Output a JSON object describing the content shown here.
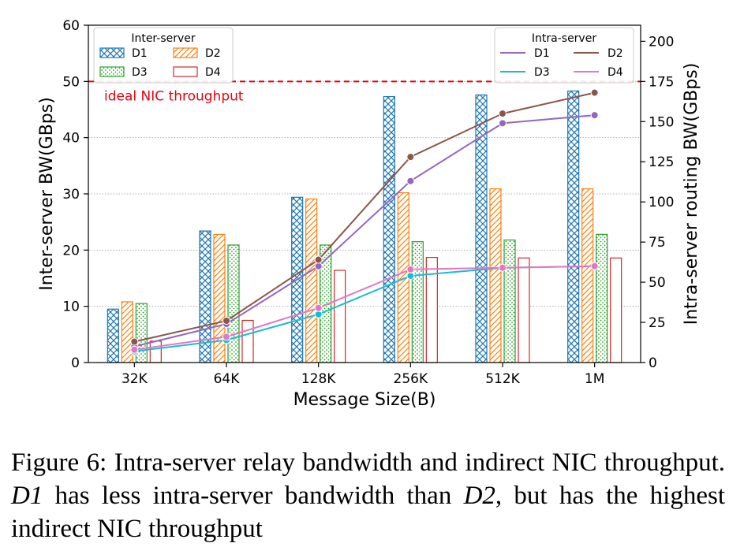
{
  "chart_data": {
    "type": "bar+line",
    "categories": [
      "32K",
      "64K",
      "128K",
      "256K",
      "512K",
      "1M"
    ],
    "xlabel": "Message Size(B)",
    "ylabel_left": "Inter-server BW(GBps)",
    "ylabel_right": "Intra-server routing BW(GBps)",
    "ylim_left": [
      0,
      60
    ],
    "yticks_left": [
      0,
      10,
      20,
      30,
      40,
      50,
      60
    ],
    "ylim_right": [
      0,
      210
    ],
    "yticks_right": [
      0,
      25,
      50,
      75,
      100,
      125,
      150,
      175,
      200
    ],
    "grid": "horizontal dotted",
    "reference_line": {
      "value": 50,
      "axis": "left",
      "label": "ideal NIC throughput",
      "color": "#e8000b"
    },
    "bar_legend": {
      "title": "Inter-server",
      "placement": "top-left"
    },
    "line_legend": {
      "title": "Intra-server",
      "placement": "top-right"
    },
    "bar_series": [
      {
        "name": "D1",
        "color": "#1f77b4",
        "hatch": "crosshatch",
        "values": [
          9.5,
          23.4,
          29.4,
          47.3,
          47.6,
          48.3
        ]
      },
      {
        "name": "D2",
        "color": "#ff7f0e",
        "hatch": "diagonal",
        "values": [
          10.8,
          22.8,
          29.1,
          30.2,
          30.9,
          30.9
        ]
      },
      {
        "name": "D3",
        "color": "#2ca02c",
        "hatch": "dots",
        "values": [
          10.5,
          20.9,
          20.9,
          21.5,
          21.8,
          22.8
        ]
      },
      {
        "name": "D4",
        "color": "#d62728",
        "hatch": "none",
        "values": [
          3.8,
          7.5,
          16.4,
          18.7,
          18.6,
          18.6
        ]
      }
    ],
    "line_series": [
      {
        "name": "D1",
        "color": "#9467bd",
        "values": [
          10,
          24,
          60,
          113,
          149,
          154
        ]
      },
      {
        "name": "D2",
        "color": "#8c564b",
        "values": [
          13,
          26,
          64,
          128,
          155,
          168
        ]
      },
      {
        "name": "D3",
        "color": "#17becf",
        "values": [
          7,
          14,
          30,
          54,
          59,
          60
        ]
      },
      {
        "name": "D4",
        "color": "#e377c2",
        "values": [
          8,
          16,
          34,
          58,
          59,
          60
        ]
      }
    ]
  },
  "caption": {
    "label": "Figure 6:",
    "text1": " Intra-server relay bandwidth and indirect NIC throughput. ",
    "em1": "D1",
    "text2": " has less intra-server bandwidth than ",
    "em2": "D2",
    "text3": ", but has the highest indirect NIC throughput"
  }
}
